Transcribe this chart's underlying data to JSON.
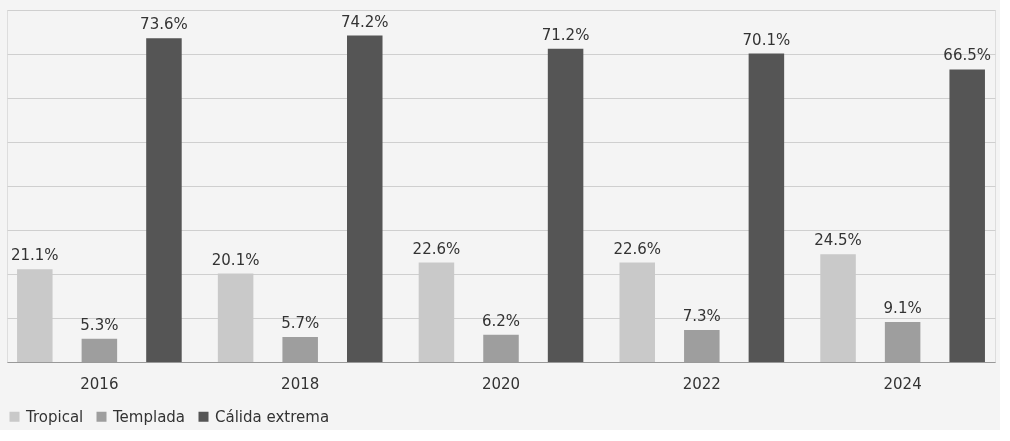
{
  "chart_data": {
    "type": "bar",
    "categories": [
      "2016",
      "2018",
      "2020",
      "2022",
      "2024"
    ],
    "series": [
      {
        "name": "Tropical",
        "color": "#c9c9c9",
        "values": [
          21.1,
          20.1,
          22.6,
          22.6,
          24.5
        ],
        "value_labels": [
          "21.1%",
          "20.1%",
          "22.6%",
          "22.6%",
          "24.5%"
        ]
      },
      {
        "name": "Templada",
        "color": "#9e9e9e",
        "values": [
          5.3,
          5.7,
          6.2,
          7.3,
          9.1
        ],
        "value_labels": [
          "5.3%",
          "5.7%",
          "6.2%",
          "7.3%",
          "9.1%"
        ]
      },
      {
        "name": "Cálida extrema",
        "color": "#555555",
        "values": [
          73.6,
          74.2,
          71.2,
          70.1,
          66.5
        ],
        "value_labels": [
          "73.6%",
          "74.2%",
          "71.2%",
          "70.1%",
          "66.5%"
        ]
      }
    ],
    "ylim": [
      0,
      80
    ],
    "yticks": [
      {
        "value": 0,
        "label": null
      },
      {
        "value": 10,
        "label": null
      },
      {
        "value": 20,
        "label": null
      },
      {
        "value": 30,
        "label": null
      },
      {
        "value": 40,
        "label": null
      },
      {
        "value": 50,
        "label": null
      },
      {
        "value": 60,
        "label": null
      },
      {
        "value": 70,
        "label": null
      },
      {
        "value": 80,
        "label": null
      }
    ],
    "grid": "y",
    "legend": "bottom"
  }
}
